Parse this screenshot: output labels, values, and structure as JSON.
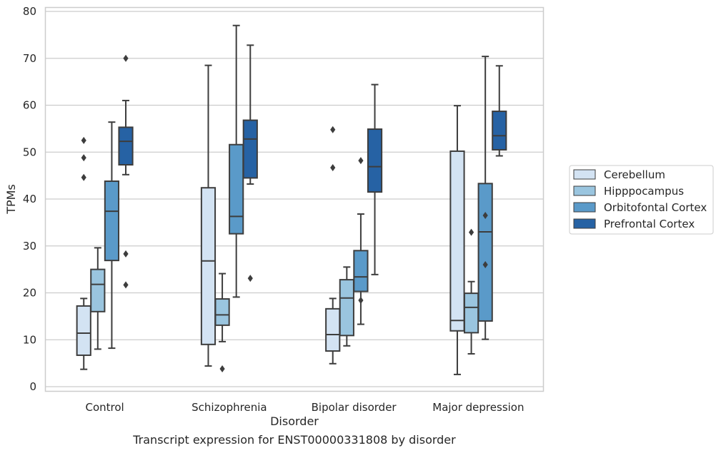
{
  "chart_data": {
    "type": "box",
    "title": "",
    "caption": "Transcript expression for ENST00000331808 by disorder",
    "xlabel": "Disorder",
    "ylabel": "TPMs",
    "ylim": [
      -1,
      81
    ],
    "yticks": [
      0,
      10,
      20,
      30,
      40,
      50,
      60,
      70,
      80
    ],
    "grid": "horizontal",
    "legend_position": "right-outside",
    "categories": [
      "Control",
      "Schizophrenia",
      "Bipolar disorder",
      "Major depression"
    ],
    "series": [
      {
        "name": "Cerebellum",
        "color": "#d3e3f3",
        "boxes": [
          {
            "whisker_low": 3.7,
            "q1": 6.7,
            "median": 11.4,
            "q3": 17.2,
            "whisker_high": 18.8,
            "outliers": []
          },
          {
            "whisker_low": 4.4,
            "q1": 9.0,
            "median": 26.8,
            "q3": 42.4,
            "whisker_high": 68.5,
            "outliers": []
          },
          {
            "whisker_low": 4.9,
            "q1": 7.6,
            "median": 11.1,
            "q3": 16.6,
            "whisker_high": 18.8,
            "outliers": []
          },
          {
            "whisker_low": 2.6,
            "q1": 11.9,
            "median": 14.1,
            "q3": 50.2,
            "whisker_high": 59.9,
            "outliers": []
          }
        ]
      },
      {
        "name": "Hipppocampus",
        "color": "#9ac5df",
        "boxes": [
          {
            "whisker_low": 8.0,
            "q1": 16.0,
            "median": 21.8,
            "q3": 25.0,
            "whisker_high": 29.6,
            "outliers": []
          },
          {
            "whisker_low": 9.6,
            "q1": 13.1,
            "median": 15.3,
            "q3": 18.7,
            "whisker_high": 24.1,
            "outliers": [
              3.8
            ]
          },
          {
            "whisker_low": 8.7,
            "q1": 10.9,
            "median": 18.9,
            "q3": 22.8,
            "whisker_high": 25.5,
            "outliers": []
          },
          {
            "whisker_low": 7.0,
            "q1": 11.5,
            "median": 16.9,
            "q3": 19.9,
            "whisker_high": 22.4,
            "outliers": [
              32.9
            ]
          }
        ]
      },
      {
        "name": "Orbitofontal Cortex",
        "color": "#5a9ac9",
        "boxes": [
          {
            "whisker_low": 8.2,
            "q1": 26.9,
            "median": 37.4,
            "q3": 43.8,
            "whisker_high": 56.4,
            "outliers": []
          },
          {
            "whisker_low": 19.1,
            "q1": 32.6,
            "median": 36.3,
            "q3": 51.6,
            "whisker_high": 77.0,
            "outliers": []
          },
          {
            "whisker_low": 13.3,
            "q1": 20.3,
            "median": 23.4,
            "q3": 29.0,
            "whisker_high": 36.8,
            "outliers": [
              48.2,
              18.4
            ]
          },
          {
            "whisker_low": 10.1,
            "q1": 14.0,
            "median": 33.0,
            "q3": 43.3,
            "whisker_high": 70.4,
            "outliers": [
              36.5,
              26.0
            ]
          }
        ]
      },
      {
        "name": "Prefrontal Cortex",
        "color": "#2662a4",
        "boxes": [
          {
            "whisker_low": 45.2,
            "q1": 47.3,
            "median": 52.3,
            "q3": 55.3,
            "whisker_high": 61.0,
            "outliers": [
              70.0,
              28.3,
              21.7
            ]
          },
          {
            "whisker_low": 43.2,
            "q1": 44.5,
            "median": 52.8,
            "q3": 56.8,
            "whisker_high": 72.8,
            "outliers": [
              23.1
            ]
          },
          {
            "whisker_low": 23.9,
            "q1": 41.5,
            "median": 46.9,
            "q3": 54.9,
            "whisker_high": 64.4,
            "outliers": []
          },
          {
            "whisker_low": 49.2,
            "q1": 50.5,
            "median": 53.5,
            "q3": 58.7,
            "whisker_high": 68.4,
            "outliers": []
          }
        ]
      }
    ],
    "outliers_by_category": [
      [
        {
          "series": 1,
          "value": 52.5
        },
        {
          "series": 1,
          "value": 48.8
        },
        {
          "series": 1,
          "value": 44.6
        }
      ],
      [],
      [
        {
          "series": 1,
          "value": 54.8
        },
        {
          "series": 1,
          "value": 46.7
        }
      ],
      []
    ]
  }
}
